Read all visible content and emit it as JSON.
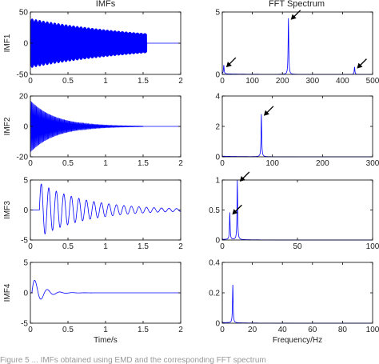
{
  "figure": {
    "column_titles": [
      "IMFs",
      "FFT Spectrum"
    ],
    "caption_fragment": "Figure 5 ... IMFs obtained using EMD and the corresponding FFT spectrum"
  },
  "chart_data": [
    {
      "type": "line",
      "id": "imf1-time",
      "ylabel": "IMF1",
      "xlabel": "",
      "xlim": [
        0,
        2
      ],
      "ylim": [
        -50,
        50
      ],
      "xticks": [
        "0",
        "0.5",
        "1",
        "1.5",
        "2"
      ],
      "yticks": [
        "50",
        "0",
        "-50"
      ],
      "signal": {
        "form": "decaying-oscillation",
        "amplitude": 40,
        "frequency_hz": 220,
        "decay_per_s": 0.6,
        "end_time_s": 1.55
      },
      "color": "#0000ff"
    },
    {
      "type": "line",
      "id": "imf1-fft",
      "ylabel": "",
      "xlabel": "",
      "xlim": [
        0,
        500
      ],
      "ylim": [
        0,
        5
      ],
      "xticks": [
        "0",
        "100",
        "200",
        "300",
        "400",
        "500"
      ],
      "yticks": [
        "5",
        "0"
      ],
      "peaks": [
        {
          "x": 5,
          "y": 0.7
        },
        {
          "x": 220,
          "y": 4.5
        },
        {
          "x": 440,
          "y": 0.6
        }
      ],
      "arrows_at_peaks": [
        0,
        1,
        2
      ],
      "color": "#0000ff"
    },
    {
      "type": "line",
      "id": "imf2-time",
      "ylabel": "IMF2",
      "xlabel": "",
      "xlim": [
        0,
        2
      ],
      "ylim": [
        -20,
        20
      ],
      "xticks": [
        "0",
        "0.5",
        "1",
        "1.5",
        "2"
      ],
      "yticks": [
        "20",
        "0",
        "-20"
      ],
      "signal": {
        "form": "decaying-oscillation",
        "amplitude": 17,
        "frequency_hz": 78,
        "decay_per_s": 3.0,
        "end_time_s": 1.5
      },
      "color": "#0000ff"
    },
    {
      "type": "line",
      "id": "imf2-fft",
      "ylabel": "",
      "xlabel": "",
      "xlim": [
        0,
        300
      ],
      "ylim": [
        0,
        4
      ],
      "xticks": [
        "0",
        "100",
        "200",
        "300"
      ],
      "yticks": [
        "4",
        "2",
        "0"
      ],
      "peaks": [
        {
          "x": 78,
          "y": 2.8
        }
      ],
      "arrows_at_peaks": [
        0
      ],
      "color": "#0000ff"
    },
    {
      "type": "line",
      "id": "imf3-time",
      "ylabel": "IMF3",
      "xlabel": "",
      "xlim": [
        0,
        2
      ],
      "ylim": [
        -5,
        5
      ],
      "xticks": [
        "0",
        "0.5",
        "1",
        "1.5",
        "2"
      ],
      "yticks": [
        "5",
        "0",
        "-5"
      ],
      "signal": {
        "form": "decaying-oscillation",
        "amplitude": 4.5,
        "frequency_hz": 10,
        "decay_per_s": 1.6,
        "end_time_s": 2.0,
        "onset_s": 0.12
      },
      "color": "#0000ff"
    },
    {
      "type": "line",
      "id": "imf3-fft",
      "ylabel": "",
      "xlabel": "",
      "xlim": [
        0,
        100
      ],
      "ylim": [
        0,
        1
      ],
      "xticks": [
        "0",
        "50",
        "100"
      ],
      "yticks": [
        "1",
        "0.5",
        "0"
      ],
      "peaks": [
        {
          "x": 5,
          "y": 0.45
        },
        {
          "x": 10,
          "y": 1.0
        }
      ],
      "arrows_at_peaks": [
        0,
        1
      ],
      "color": "#0000ff"
    },
    {
      "type": "line",
      "id": "imf4-time",
      "ylabel": "IMF4",
      "xlabel": "Time/s",
      "xlim": [
        0,
        2
      ],
      "ylim": [
        -5,
        5
      ],
      "xticks": [
        "0",
        "0.5",
        "1",
        "1.5",
        "2"
      ],
      "yticks": [
        "5",
        "0",
        "-5"
      ],
      "signal": {
        "form": "decaying-oscillation",
        "amplitude": 2.8,
        "frequency_hz": 6,
        "decay_per_s": 8,
        "end_time_s": 2.0,
        "onset_s": 0.02
      },
      "color": "#0000ff"
    },
    {
      "type": "line",
      "id": "imf4-fft",
      "ylabel": "",
      "xlabel": "Frequency/Hz",
      "xlim": [
        0,
        100
      ],
      "ylim": [
        0,
        0.4
      ],
      "xticks": [
        "0",
        "20",
        "40",
        "60",
        "80",
        "100"
      ],
      "yticks": [
        "0.4",
        "0.2",
        "0"
      ],
      "peaks": [
        {
          "x": 7,
          "y": 0.25
        }
      ],
      "arrows_at_peaks": [],
      "color": "#0000ff"
    }
  ]
}
